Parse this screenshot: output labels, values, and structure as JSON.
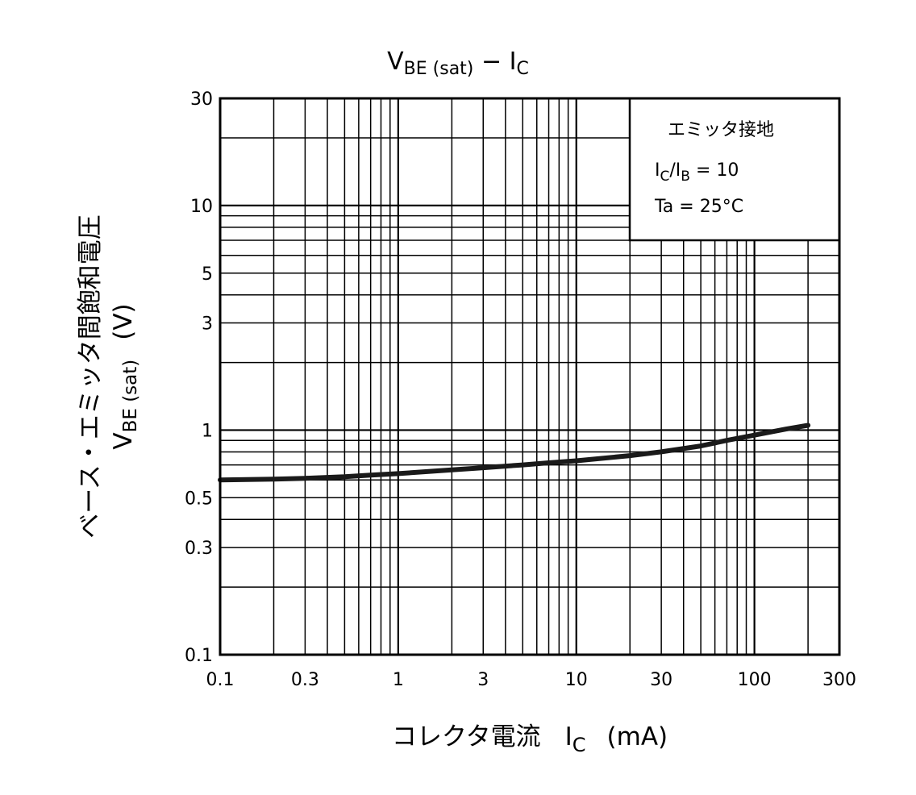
{
  "chart_data": {
    "type": "line",
    "title": {
      "v": "V",
      "v_sub": "BE (sat)",
      "dash": " − ",
      "i": "I",
      "i_sub": "C"
    },
    "xlabel": {
      "text": "コレクタ電流",
      "i": "I",
      "i_sub": "C",
      "unit": "(mA)"
    },
    "ylabel": {
      "text": "ベース・エミッタ間飽和電圧",
      "v": "V",
      "v_sub": "BE (sat)",
      "unit": "(V)"
    },
    "x_scale": "log",
    "y_scale": "log",
    "xlim": [
      0.1,
      300
    ],
    "ylim": [
      0.1,
      30
    ],
    "x_ticks": [
      "0.1",
      "0.3",
      "1",
      "3",
      "10",
      "30",
      "100",
      "300"
    ],
    "y_ticks": [
      "0.1",
      "0.3",
      "0.5",
      "1",
      "3",
      "5",
      "10",
      "30"
    ],
    "grid": true,
    "legend": {
      "placement": "top-right",
      "line1": "エミッタ接地",
      "line2_i": "I",
      "line2_isub": "C",
      "line2_slash": "/I",
      "line2_bsub": "B",
      "line2_val": " = 10",
      "line3": "Ta = 25°C"
    },
    "series": [
      {
        "x": [
          0.1,
          0.2,
          0.3,
          0.5,
          0.7,
          1,
          2,
          3,
          5,
          7,
          10,
          20,
          30,
          50,
          70,
          100,
          150,
          200
        ],
        "values": [
          0.6,
          0.605,
          0.61,
          0.62,
          0.63,
          0.64,
          0.665,
          0.68,
          0.7,
          0.715,
          0.73,
          0.77,
          0.8,
          0.85,
          0.9,
          0.95,
          1.01,
          1.05
        ]
      }
    ]
  }
}
